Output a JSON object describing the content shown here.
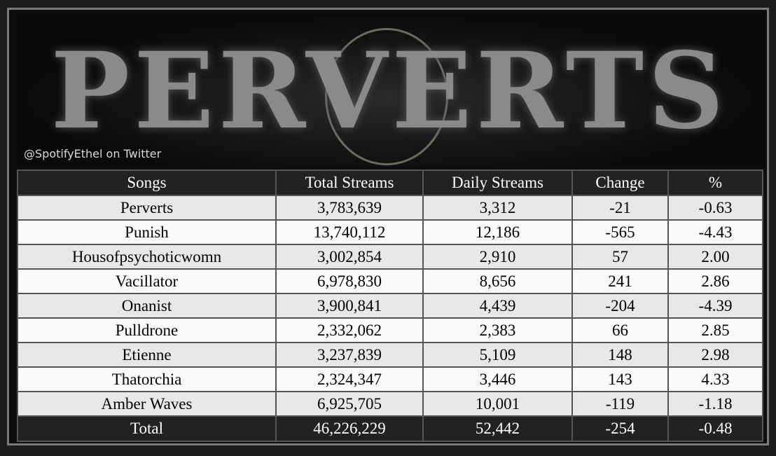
{
  "banner": {
    "title": "PERVERTS",
    "credit": "@SpotifyEthel on Twitter"
  },
  "table": {
    "columns": [
      "Songs",
      "Total Streams",
      "Daily Streams",
      "Change",
      "%"
    ],
    "rows": [
      [
        "Perverts",
        "3,783,639",
        "3,312",
        "-21",
        "-0.63"
      ],
      [
        "Punish",
        "13,740,112",
        "12,186",
        "-565",
        "-4.43"
      ],
      [
        "Housofpsychoticwomn",
        "3,002,854",
        "2,910",
        "57",
        "2.00"
      ],
      [
        "Vacillator",
        "6,978,830",
        "8,656",
        "241",
        "2.86"
      ],
      [
        "Onanist",
        "3,900,841",
        "4,439",
        "-204",
        "-4.39"
      ],
      [
        "Pulldrone",
        "2,332,062",
        "2,383",
        "66",
        "2.85"
      ],
      [
        "Etienne",
        "3,237,839",
        "5,109",
        "148",
        "2.98"
      ],
      [
        "Thatorchia",
        "2,324,347",
        "3,446",
        "143",
        "4.33"
      ],
      [
        "Amber Waves",
        "6,925,705",
        "10,001",
        "-119",
        "-1.18"
      ]
    ],
    "total": [
      "Total",
      "46,226,229",
      "52,442",
      "-254",
      "-0.48"
    ]
  }
}
